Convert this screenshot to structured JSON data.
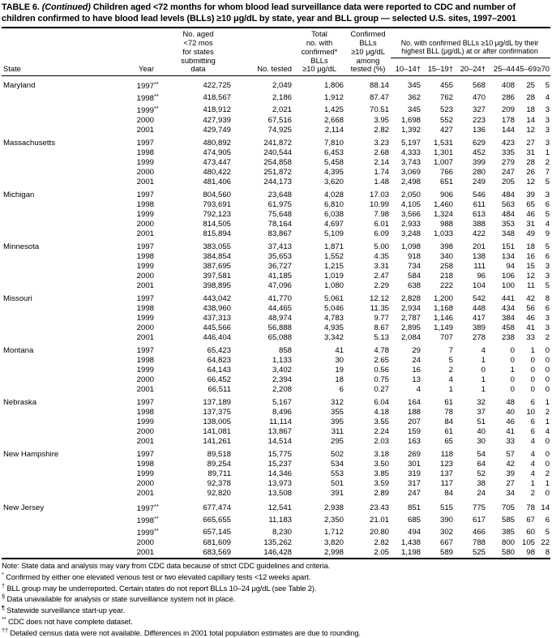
{
  "title": {
    "table_label": "TABLE 6.",
    "continued": "(Continued)",
    "text": "Children aged <72 months for whom blood lead surveillance data were reported to CDC and number of children confirmed to have blood lead levels (BLLs) ≥10 μg/dL by state, year and BLL group — selected U.S. sites, 1997–2001"
  },
  "table": {
    "col_headers": {
      "state": "State",
      "year": "Year",
      "population": "No. aged\n<72 mos\nfor states\nsubmitting\ndata",
      "tested": "No. tested",
      "confirmed": "Total\nno. with\nconfirmed*\nBLLs\n≥10 μg/dL",
      "pct": "Confirmed\nBLLs\n≥10 μg/dL\namong\ntested (%)",
      "bll_span": "No. with confirmed BLLs ≥10 μg/dL by their\nhighest BLL (μg/dL) at or after confirmation",
      "bll_groups": [
        "10–14†",
        "15–19†",
        "20–24†",
        "25–44",
        "45–69",
        "≥70"
      ]
    },
    "groups": [
      {
        "state": "Maryland",
        "rows": [
          [
            "1997**",
            "422,725",
            "2,049",
            "1,806",
            "88.14",
            "345",
            "455",
            "568",
            "408",
            "25",
            "5"
          ],
          [
            "1998**",
            "418,567",
            "2,186",
            "1,912",
            "87.47",
            "362",
            "762",
            "470",
            "286",
            "28",
            "4"
          ],
          [
            "1999**",
            "418,912",
            "2,021",
            "1,425",
            "70.51",
            "345",
            "523",
            "327",
            "209",
            "18",
            "3"
          ],
          [
            "2000",
            "427,939",
            "67,516",
            "2,668",
            "3.95",
            "1,698",
            "552",
            "223",
            "178",
            "14",
            "3"
          ],
          [
            "2001",
            "429,749",
            "74,925",
            "2,114",
            "2.82",
            "1,392",
            "427",
            "136",
            "144",
            "12",
            "3"
          ]
        ]
      },
      {
        "state": "Massachusetts",
        "rows": [
          [
            "1997",
            "480,892",
            "241,872",
            "7,810",
            "3.23",
            "5,197",
            "1,531",
            "629",
            "423",
            "27",
            "3"
          ],
          [
            "1998",
            "474,905",
            "240,544",
            "6,453",
            "2.68",
            "4,333",
            "1,301",
            "452",
            "335",
            "31",
            "1"
          ],
          [
            "1999",
            "473,447",
            "254,858",
            "5,458",
            "2.14",
            "3,743",
            "1,007",
            "399",
            "279",
            "28",
            "2"
          ],
          [
            "2000",
            "480,422",
            "251,872",
            "4,395",
            "1.74",
            "3,069",
            "766",
            "280",
            "247",
            "26",
            "7"
          ],
          [
            "2001",
            "481,406",
            "244,173",
            "3,620",
            "1.48",
            "2,498",
            "651",
            "249",
            "205",
            "12",
            "5"
          ]
        ]
      },
      {
        "state": "Michigan",
        "rows": [
          [
            "1997",
            "804,560",
            "23,648",
            "4,028",
            "17.03",
            "2,050",
            "906",
            "546",
            "484",
            "39",
            "3"
          ],
          [
            "1998",
            "793,691",
            "61,975",
            "6,810",
            "10.99",
            "4,105",
            "1,460",
            "611",
            "563",
            "65",
            "6"
          ],
          [
            "1999",
            "792,123",
            "75,648",
            "6,038",
            "7.98",
            "3,566",
            "1,324",
            "613",
            "484",
            "46",
            "5"
          ],
          [
            "2000",
            "814,505",
            "78,164",
            "4,697",
            "6.01",
            "2,933",
            "988",
            "388",
            "353",
            "31",
            "4"
          ],
          [
            "2001",
            "815,894",
            "83,867",
            "5,109",
            "6.09",
            "3,248",
            "1,033",
            "422",
            "348",
            "49",
            "9"
          ]
        ]
      },
      {
        "state": "Minnesota",
        "rows": [
          [
            "1997",
            "383,055",
            "37,413",
            "1,871",
            "5.00",
            "1,098",
            "398",
            "201",
            "151",
            "18",
            "5"
          ],
          [
            "1998",
            "384,854",
            "35,653",
            "1,552",
            "4.35",
            "918",
            "340",
            "138",
            "134",
            "16",
            "6"
          ],
          [
            "1999",
            "387,695",
            "36,727",
            "1,215",
            "3.31",
            "734",
            "258",
            "111",
            "94",
            "15",
            "3"
          ],
          [
            "2000",
            "397,581",
            "41,185",
            "1,019",
            "2.47",
            "584",
            "218",
            "96",
            "106",
            "12",
            "3"
          ],
          [
            "2001",
            "398,895",
            "47,096",
            "1,080",
            "2.29",
            "638",
            "222",
            "104",
            "100",
            "11",
            "5"
          ]
        ]
      },
      {
        "state": "Missouri",
        "rows": [
          [
            "1997",
            "443,042",
            "41,770",
            "5,061",
            "12.12",
            "2,828",
            "1,200",
            "542",
            "441",
            "42",
            "8"
          ],
          [
            "1998",
            "438,960",
            "44,465",
            "5,046",
            "11.35",
            "2,934",
            "1,168",
            "448",
            "434",
            "56",
            "6"
          ],
          [
            "1999",
            "437,313",
            "48,974",
            "4,783",
            "9.77",
            "2,787",
            "1,146",
            "417",
            "384",
            "46",
            "3"
          ],
          [
            "2000",
            "445,566",
            "56,888",
            "4,935",
            "8.67",
            "2,895",
            "1,149",
            "389",
            "458",
            "41",
            "3"
          ],
          [
            "2001",
            "446,404",
            "65,088",
            "3,342",
            "5.13",
            "2,084",
            "707",
            "278",
            "238",
            "33",
            "2"
          ]
        ]
      },
      {
        "state": "Montana",
        "rows": [
          [
            "1997",
            "65,423",
            "858",
            "41",
            "4.78",
            "29",
            "7",
            "4",
            "0",
            "1",
            "0"
          ],
          [
            "1998",
            "64,823",
            "1,133",
            "30",
            "2.65",
            "24",
            "5",
            "1",
            "0",
            "0",
            "0"
          ],
          [
            "1999",
            "64,143",
            "3,402",
            "19",
            "0.56",
            "16",
            "2",
            "0",
            "1",
            "0",
            "0"
          ],
          [
            "2000",
            "66,452",
            "2,394",
            "18",
            "0.75",
            "13",
            "4",
            "1",
            "0",
            "0",
            "0"
          ],
          [
            "2001",
            "66,511",
            "2,208",
            "6",
            "0.27",
            "4",
            "1",
            "1",
            "0",
            "0",
            "0"
          ]
        ]
      },
      {
        "state": "Nebraska",
        "rows": [
          [
            "1997",
            "137,189",
            "5,167",
            "312",
            "6.04",
            "164",
            "61",
            "32",
            "48",
            "6",
            "1"
          ],
          [
            "1998",
            "137,375",
            "8,496",
            "355",
            "4.18",
            "188",
            "78",
            "37",
            "40",
            "10",
            "2"
          ],
          [
            "1999",
            "138,005",
            "11,114",
            "395",
            "3.55",
            "207",
            "84",
            "51",
            "46",
            "6",
            "1"
          ],
          [
            "2000",
            "141,081",
            "13,867",
            "311",
            "2.24",
            "159",
            "61",
            "40",
            "41",
            "6",
            "4"
          ],
          [
            "2001",
            "141,261",
            "14,514",
            "295",
            "2.03",
            "163",
            "65",
            "30",
            "33",
            "4",
            "0"
          ]
        ]
      },
      {
        "state": "New Hampshire",
        "rows": [
          [
            "1997",
            "89,518",
            "15,775",
            "502",
            "3.18",
            "269",
            "118",
            "54",
            "57",
            "4",
            "0"
          ],
          [
            "1998",
            "89,254",
            "15,237",
            "534",
            "3.50",
            "301",
            "123",
            "64",
            "42",
            "4",
            "0"
          ],
          [
            "1999",
            "89,711",
            "14,346",
            "553",
            "3.85",
            "319",
            "137",
            "52",
            "39",
            "4",
            "2"
          ],
          [
            "2000",
            "92,378",
            "13,973",
            "501",
            "3.59",
            "317",
            "117",
            "38",
            "27",
            "1",
            "1"
          ],
          [
            "2001",
            "92,820",
            "13,508",
            "391",
            "2.89",
            "247",
            "84",
            "24",
            "34",
            "2",
            "0"
          ]
        ]
      },
      {
        "state": "New Jersey",
        "rows": [
          [
            "1997**",
            "677,474",
            "12,541",
            "2,938",
            "23.43",
            "851",
            "515",
            "775",
            "705",
            "78",
            "14"
          ],
          [
            "1998**",
            "665,655",
            "11,183",
            "2,350",
            "21.01",
            "685",
            "390",
            "617",
            "585",
            "67",
            "6"
          ],
          [
            "1999**",
            "657,145",
            "8,230",
            "1,712",
            "20.80",
            "494",
            "302",
            "466",
            "385",
            "60",
            "5"
          ],
          [
            "2000",
            "681,609",
            "135,262",
            "3,820",
            "2.82",
            "1,438",
            "667",
            "788",
            "800",
            "105",
            "22"
          ],
          [
            "2001",
            "683,569",
            "146,428",
            "2,998",
            "2.05",
            "1,198",
            "589",
            "525",
            "580",
            "98",
            "8"
          ]
        ]
      }
    ]
  },
  "footnotes": [
    {
      "marker": "",
      "text": "Note: State data and analysis may vary from CDC data because of strict CDC guidelines and criteria."
    },
    {
      "marker": "*",
      "text": "Confirmed by either one elevated venous test or two elevated capillary tests <12 weeks apart."
    },
    {
      "marker": "†",
      "text": "BLL group may be underreported. Certain states do not report BLLs 10–24 μg/dL (see Table 2)."
    },
    {
      "marker": "§",
      "text": "Data unavailable for analysis or state surveillance system not in place."
    },
    {
      "marker": "¶",
      "text": "Statewide surveillance start-up year."
    },
    {
      "marker": "**",
      "text": "CDC does not have complete dataset."
    },
    {
      "marker": "††",
      "text": "Detailed census data were not available. Differences in 2001 total population estimates are due to rounding."
    }
  ]
}
